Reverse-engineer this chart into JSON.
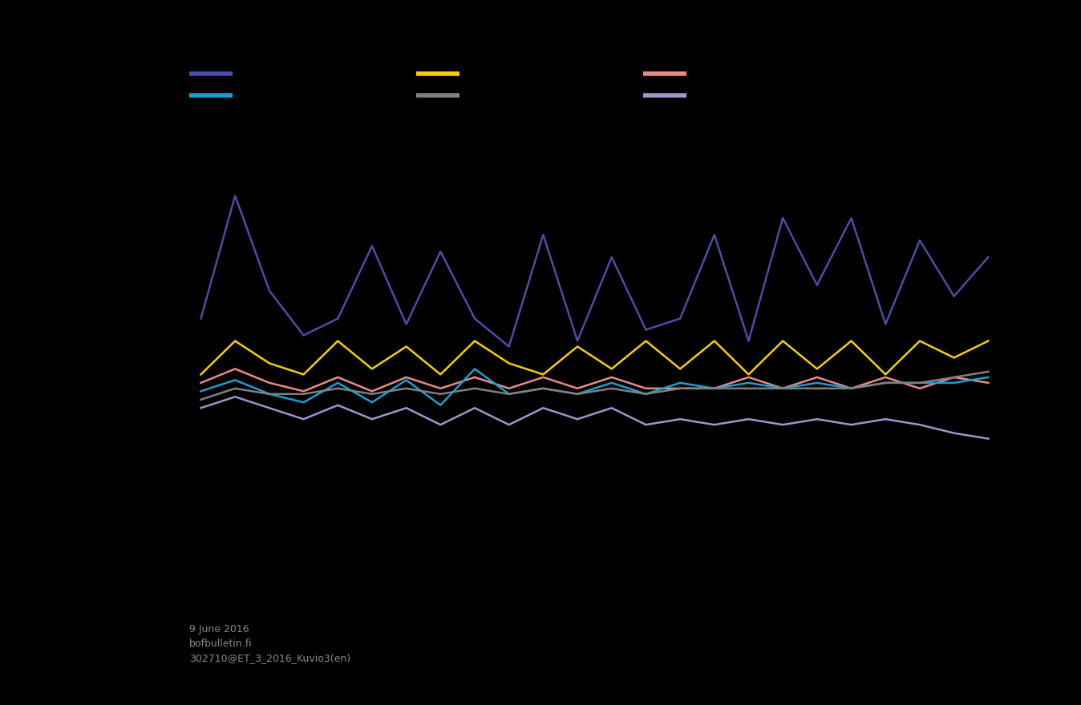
{
  "background_color": "#000000",
  "line_colors": {
    "navy": "#4a4ea8",
    "yellow": "#f5d000",
    "pink": "#e88a8a",
    "cyan": "#1a9fd4",
    "gray": "#808080",
    "lavender": "#9898cc"
  },
  "legend_colors_row1": [
    "#4a4ea8",
    "#f5d000",
    "#e88a8a"
  ],
  "legend_colors_row2": [
    "#1a9fd4",
    "#808080",
    "#9898cc"
  ],
  "footer_text": "9 June 2016\nbofbulletin.fi\n302710@ET_3_2016_Kuvio3(en)",
  "navy": [
    3.0,
    5.2,
    3.5,
    2.7,
    3.0,
    4.3,
    2.9,
    4.2,
    3.0,
    2.5,
    4.5,
    2.6,
    4.1,
    2.8,
    3.0,
    4.5,
    2.6,
    4.8,
    3.6,
    4.8,
    2.9,
    4.4,
    3.4,
    4.1
  ],
  "yellow": [
    2.0,
    2.6,
    2.2,
    2.0,
    2.6,
    2.1,
    2.5,
    2.0,
    2.6,
    2.2,
    2.0,
    2.5,
    2.1,
    2.6,
    2.1,
    2.6,
    2.0,
    2.6,
    2.1,
    2.6,
    2.0,
    2.6,
    2.3,
    2.6
  ],
  "pink": [
    1.85,
    2.1,
    1.85,
    1.7,
    1.95,
    1.7,
    1.95,
    1.75,
    1.95,
    1.75,
    1.95,
    1.75,
    1.95,
    1.75,
    1.75,
    1.75,
    1.95,
    1.75,
    1.95,
    1.75,
    1.95,
    1.75,
    1.95,
    1.85
  ],
  "cyan": [
    1.7,
    1.9,
    1.65,
    1.5,
    1.85,
    1.5,
    1.9,
    1.45,
    2.1,
    1.65,
    1.75,
    1.65,
    1.85,
    1.65,
    1.85,
    1.75,
    1.85,
    1.75,
    1.85,
    1.75,
    1.85,
    1.85,
    1.85,
    1.95
  ],
  "gray": [
    1.55,
    1.75,
    1.65,
    1.65,
    1.75,
    1.65,
    1.75,
    1.65,
    1.75,
    1.65,
    1.75,
    1.65,
    1.75,
    1.65,
    1.75,
    1.75,
    1.75,
    1.75,
    1.75,
    1.75,
    1.85,
    1.85,
    1.95,
    2.05
  ],
  "lavender": [
    1.4,
    1.6,
    1.4,
    1.2,
    1.45,
    1.2,
    1.4,
    1.1,
    1.4,
    1.1,
    1.4,
    1.2,
    1.4,
    1.1,
    1.2,
    1.1,
    1.2,
    1.1,
    1.2,
    1.1,
    1.2,
    1.1,
    0.95,
    0.85
  ]
}
